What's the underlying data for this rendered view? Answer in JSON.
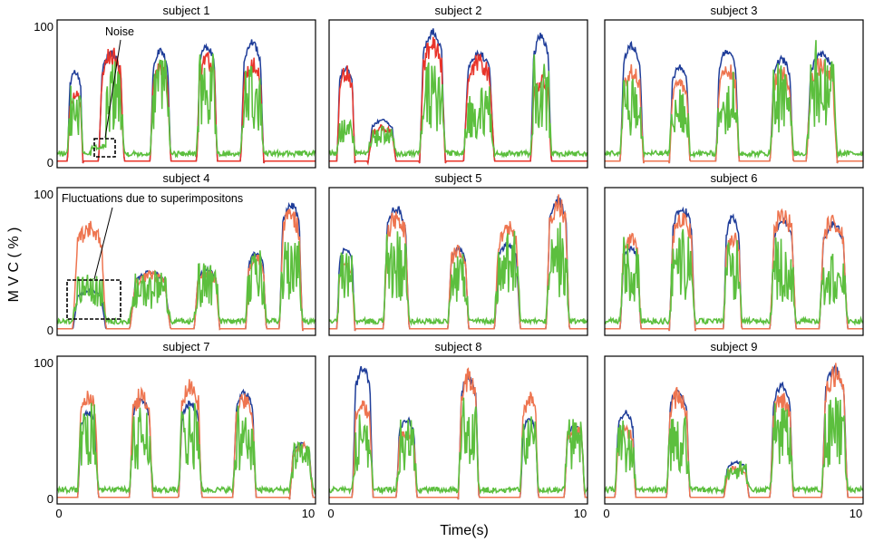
{
  "chart_data": {
    "type": "line",
    "ylabel": "M V C ( % )",
    "xlabel": "Time(s)",
    "xlim": [
      0,
      10
    ],
    "ylim": [
      0,
      100
    ],
    "series_names": [
      "blue",
      "red",
      "green"
    ],
    "colors": {
      "blue": "#1f3d99",
      "red": "#e8342a",
      "orange": "#ee7550",
      "green": "#5cbf3e"
    },
    "annotations": [
      {
        "subplot": 1,
        "text": "Noise"
      },
      {
        "subplot": 4,
        "text": "Fluctuations due to superimpositons"
      }
    ],
    "panels": [
      {
        "title": "subject 1",
        "red_color": "red",
        "bursts": [
          [
            0.4,
            1.0,
            68,
            55,
            45
          ],
          [
            1.6,
            2.6,
            82,
            85,
            55
          ],
          [
            3.6,
            4.4,
            85,
            75,
            60
          ],
          [
            5.4,
            6.2,
            88,
            82,
            62
          ],
          [
            7.1,
            8.0,
            90,
            78,
            60
          ]
        ],
        "noise_segment": [
          1.3,
          1.9,
          12
        ]
      },
      {
        "title": "subject 2",
        "red_color": "red",
        "bursts": [
          [
            0.3,
            1.0,
            72,
            72,
            20
          ],
          [
            1.5,
            2.6,
            32,
            28,
            16
          ],
          [
            3.5,
            4.5,
            98,
            92,
            55
          ],
          [
            5.2,
            6.4,
            82,
            80,
            40
          ],
          [
            7.8,
            8.6,
            95,
            65,
            60
          ]
        ]
      },
      {
        "title": "subject 3",
        "red_color": "orange",
        "bursts": [
          [
            0.6,
            1.5,
            88,
            72,
            45
          ],
          [
            2.5,
            3.3,
            72,
            62,
            42
          ],
          [
            4.3,
            5.2,
            85,
            75,
            52
          ],
          [
            6.4,
            7.3,
            78,
            72,
            55
          ],
          [
            7.8,
            9.0,
            82,
            78,
            68
          ]
        ]
      },
      {
        "title": "subject 4",
        "red_color": "orange",
        "bursts": [
          [
            0.6,
            1.9,
            30,
            82,
            28
          ],
          [
            2.8,
            4.4,
            44,
            44,
            30
          ],
          [
            5.3,
            6.3,
            46,
            46,
            35
          ],
          [
            7.3,
            8.1,
            58,
            58,
            42
          ],
          [
            8.6,
            9.5,
            95,
            92,
            52
          ]
        ]
      },
      {
        "title": "subject 5",
        "red_color": "orange",
        "bursts": [
          [
            0.3,
            1.0,
            62,
            50,
            42
          ],
          [
            2.1,
            3.1,
            92,
            90,
            55
          ],
          [
            4.6,
            5.4,
            62,
            65,
            40
          ],
          [
            6.4,
            7.4,
            65,
            82,
            55
          ],
          [
            8.4,
            9.3,
            98,
            100,
            62
          ]
        ]
      },
      {
        "title": "subject 6",
        "red_color": "orange",
        "bursts": [
          [
            0.6,
            1.4,
            62,
            72,
            52
          ],
          [
            2.5,
            3.5,
            92,
            88,
            55
          ],
          [
            4.6,
            5.3,
            85,
            75,
            50
          ],
          [
            6.4,
            7.4,
            82,
            92,
            50
          ],
          [
            8.3,
            9.4,
            80,
            88,
            40
          ]
        ]
      },
      {
        "title": "subject 7",
        "red_color": "orange",
        "bursts": [
          [
            0.8,
            1.6,
            65,
            82,
            52
          ],
          [
            2.8,
            3.7,
            75,
            82,
            50
          ],
          [
            4.7,
            5.6,
            72,
            90,
            52
          ],
          [
            6.8,
            7.7,
            80,
            78,
            50
          ],
          [
            9.0,
            9.9,
            42,
            42,
            28
          ]
        ]
      },
      {
        "title": "subject 8",
        "red_color": "orange",
        "bursts": [
          [
            0.9,
            1.7,
            98,
            75,
            45
          ],
          [
            2.6,
            3.4,
            60,
            55,
            42
          ],
          [
            5.0,
            5.8,
            92,
            95,
            55
          ],
          [
            7.4,
            8.1,
            60,
            80,
            45
          ],
          [
            9.1,
            9.9,
            55,
            58,
            42
          ]
        ]
      },
      {
        "title": "subject 9",
        "red_color": "orange",
        "bursts": [
          [
            0.4,
            1.2,
            65,
            55,
            42
          ],
          [
            2.4,
            3.3,
            82,
            82,
            45
          ],
          [
            4.6,
            5.6,
            28,
            25,
            18
          ],
          [
            6.4,
            7.3,
            85,
            80,
            55
          ],
          [
            8.4,
            9.4,
            98,
            100,
            60
          ]
        ]
      }
    ]
  }
}
